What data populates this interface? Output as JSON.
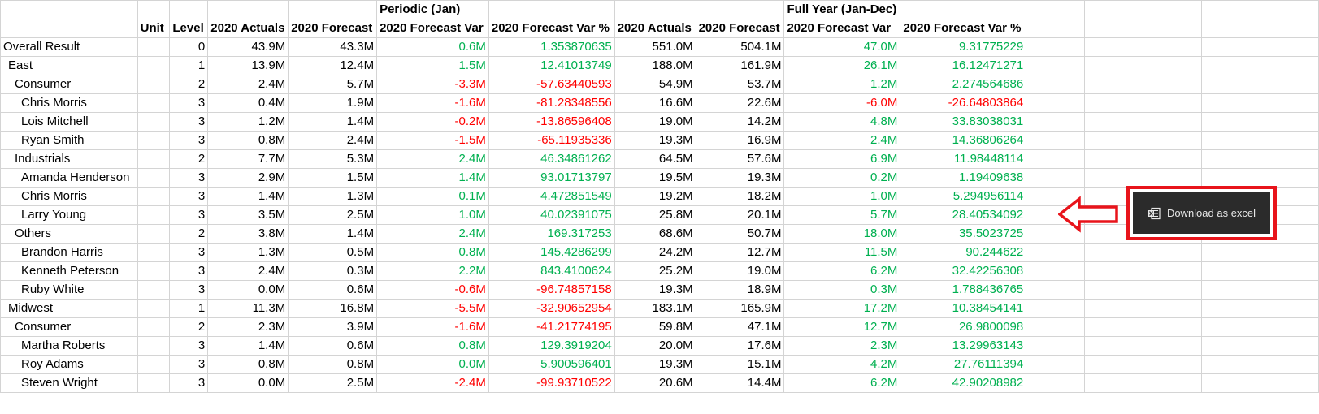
{
  "header": {
    "group_periodic": "Periodic (Jan)",
    "group_fullyear": "Full Year (Jan-Dec)",
    "columns": [
      "Unit",
      "Level",
      "2020 Actuals",
      "2020 Forecast",
      "2020 Forecast Var",
      "2020 Forecast Var %",
      "2020 Actuals",
      "2020 Forecast",
      "2020 Forecast Var",
      "2020 Forecast Var %"
    ]
  },
  "rows": [
    {
      "name": "Overall Result",
      "indent": 0,
      "level": "0",
      "p_act": "43.9M",
      "p_fc": "43.3M",
      "p_var": "0.6M",
      "p_pct": "1.353870635",
      "f_act": "551.0M",
      "f_fc": "504.1M",
      "f_var": "47.0M",
      "f_pct": "9.31775229"
    },
    {
      "name": "East",
      "indent": 1,
      "level": "1",
      "p_act": "13.9M",
      "p_fc": "12.4M",
      "p_var": "1.5M",
      "p_pct": "12.41013749",
      "f_act": "188.0M",
      "f_fc": "161.9M",
      "f_var": "26.1M",
      "f_pct": "16.12471271"
    },
    {
      "name": "Consumer",
      "indent": 2,
      "level": "2",
      "p_act": "2.4M",
      "p_fc": "5.7M",
      "p_var": "-3.3M",
      "p_pct": "-57.63440593",
      "f_act": "54.9M",
      "f_fc": "53.7M",
      "f_var": "1.2M",
      "f_pct": "2.274564686"
    },
    {
      "name": "Chris Morris",
      "indent": 3,
      "level": "3",
      "p_act": "0.4M",
      "p_fc": "1.9M",
      "p_var": "-1.6M",
      "p_pct": "-81.28348556",
      "f_act": "16.6M",
      "f_fc": "22.6M",
      "f_var": "-6.0M",
      "f_pct": "-26.64803864"
    },
    {
      "name": "Lois Mitchell",
      "indent": 3,
      "level": "3",
      "p_act": "1.2M",
      "p_fc": "1.4M",
      "p_var": "-0.2M",
      "p_pct": "-13.86596408",
      "f_act": "19.0M",
      "f_fc": "14.2M",
      "f_var": "4.8M",
      "f_pct": "33.83038031"
    },
    {
      "name": "Ryan Smith",
      "indent": 3,
      "level": "3",
      "p_act": "0.8M",
      "p_fc": "2.4M",
      "p_var": "-1.5M",
      "p_pct": "-65.11935336",
      "f_act": "19.3M",
      "f_fc": "16.9M",
      "f_var": "2.4M",
      "f_pct": "14.36806264"
    },
    {
      "name": "Industrials",
      "indent": 2,
      "level": "2",
      "p_act": "7.7M",
      "p_fc": "5.3M",
      "p_var": "2.4M",
      "p_pct": "46.34861262",
      "f_act": "64.5M",
      "f_fc": "57.6M",
      "f_var": "6.9M",
      "f_pct": "11.98448114"
    },
    {
      "name": "Amanda Henderson",
      "indent": 3,
      "level": "3",
      "p_act": "2.9M",
      "p_fc": "1.5M",
      "p_var": "1.4M",
      "p_pct": "93.01713797",
      "f_act": "19.5M",
      "f_fc": "19.3M",
      "f_var": "0.2M",
      "f_pct": "1.19409638"
    },
    {
      "name": "Chris Morris",
      "indent": 3,
      "level": "3",
      "p_act": "1.4M",
      "p_fc": "1.3M",
      "p_var": "0.1M",
      "p_pct": "4.472851549",
      "f_act": "19.2M",
      "f_fc": "18.2M",
      "f_var": "1.0M",
      "f_pct": "5.294956114"
    },
    {
      "name": "Larry Young",
      "indent": 3,
      "level": "3",
      "p_act": "3.5M",
      "p_fc": "2.5M",
      "p_var": "1.0M",
      "p_pct": "40.02391075",
      "f_act": "25.8M",
      "f_fc": "20.1M",
      "f_var": "5.7M",
      "f_pct": "28.40534092"
    },
    {
      "name": "Others",
      "indent": 2,
      "level": "2",
      "p_act": "3.8M",
      "p_fc": "1.4M",
      "p_var": "2.4M",
      "p_pct": "169.317253",
      "f_act": "68.6M",
      "f_fc": "50.7M",
      "f_var": "18.0M",
      "f_pct": "35.5023725"
    },
    {
      "name": "Brandon Harris",
      "indent": 3,
      "level": "3",
      "p_act": "1.3M",
      "p_fc": "0.5M",
      "p_var": "0.8M",
      "p_pct": "145.4286299",
      "f_act": "24.2M",
      "f_fc": "12.7M",
      "f_var": "11.5M",
      "f_pct": "90.244622"
    },
    {
      "name": "Kenneth Peterson",
      "indent": 3,
      "level": "3",
      "p_act": "2.4M",
      "p_fc": "0.3M",
      "p_var": "2.2M",
      "p_pct": "843.4100624",
      "f_act": "25.2M",
      "f_fc": "19.0M",
      "f_var": "6.2M",
      "f_pct": "32.42256308"
    },
    {
      "name": "Ruby White",
      "indent": 3,
      "level": "3",
      "p_act": "0.0M",
      "p_fc": "0.6M",
      "p_var": "-0.6M",
      "p_pct": "-96.74857158",
      "f_act": "19.3M",
      "f_fc": "18.9M",
      "f_var": "0.3M",
      "f_pct": "1.788436765"
    },
    {
      "name": "Midwest",
      "indent": 1,
      "level": "1",
      "p_act": "11.3M",
      "p_fc": "16.8M",
      "p_var": "-5.5M",
      "p_pct": "-32.90652954",
      "f_act": "183.1M",
      "f_fc": "165.9M",
      "f_var": "17.2M",
      "f_pct": "10.38454141"
    },
    {
      "name": "Consumer",
      "indent": 2,
      "level": "2",
      "p_act": "2.3M",
      "p_fc": "3.9M",
      "p_var": "-1.6M",
      "p_pct": "-41.21774195",
      "f_act": "59.8M",
      "f_fc": "47.1M",
      "f_var": "12.7M",
      "f_pct": "26.9800098"
    },
    {
      "name": "Martha Roberts",
      "indent": 3,
      "level": "3",
      "p_act": "1.4M",
      "p_fc": "0.6M",
      "p_var": "0.8M",
      "p_pct": "129.3919204",
      "f_act": "20.0M",
      "f_fc": "17.6M",
      "f_var": "2.3M",
      "f_pct": "13.29963143"
    },
    {
      "name": "Roy Adams",
      "indent": 3,
      "level": "3",
      "p_act": "0.8M",
      "p_fc": "0.8M",
      "p_var": "0.0M",
      "p_pct": "5.900596401",
      "f_act": "19.3M",
      "f_fc": "15.1M",
      "f_var": "4.2M",
      "f_pct": "27.76111394"
    },
    {
      "name": "Steven Wright",
      "indent": 3,
      "level": "3",
      "p_act": "0.0M",
      "p_fc": "2.5M",
      "p_var": "-2.4M",
      "p_pct": "-99.93710522",
      "f_act": "20.6M",
      "f_fc": "14.4M",
      "f_var": "6.2M",
      "f_pct": "42.90208982"
    }
  ],
  "download": {
    "label": "Download as excel",
    "icon": "excel-icon"
  },
  "colors": {
    "positive": "#00b050",
    "negative": "#ff0000",
    "highlight_border": "#e8141b",
    "button_bg": "#2b2b2b"
  }
}
